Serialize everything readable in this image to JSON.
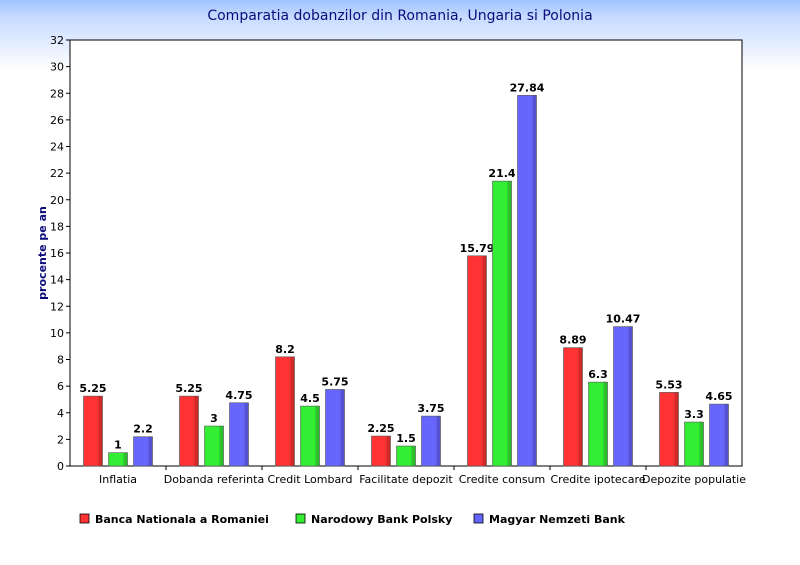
{
  "chart_data": {
    "type": "bar",
    "title": "Comparatia dobanzilor din Romania, Ungaria si Polonia",
    "xlabel": "",
    "ylabel": "procente pe an",
    "ylim": [
      0,
      32
    ],
    "ytick_step": 2,
    "grid": false,
    "legend_position": "bottom",
    "categories": [
      "Inflatia",
      "Dobanda referinta",
      "Credit Lombard",
      "Facilitate depozit",
      "Credite consum",
      "Credite ipotecare",
      "Depozite populatie"
    ],
    "series": [
      {
        "name": "Banca Nationala a Romaniei",
        "color": "#ff3333",
        "values": [
          5.25,
          5.25,
          8.2,
          2.25,
          15.79,
          8.89,
          5.53
        ],
        "labels": [
          "5.25",
          "5.25",
          "8.2",
          "2.25",
          "15.79",
          "8.89",
          "5.53"
        ]
      },
      {
        "name": "Narodowy Bank Polsky",
        "color": "#33ee33",
        "values": [
          1,
          3,
          4.5,
          1.5,
          21.4,
          6.3,
          3.3
        ],
        "labels": [
          "1",
          "3",
          "4.5",
          "1.5",
          "21.4",
          "6.3",
          "3.3"
        ]
      },
      {
        "name": "Magyar Nemzeti Bank",
        "color": "#6666ff",
        "values": [
          2.2,
          4.75,
          5.75,
          3.75,
          27.84,
          10.47,
          4.65
        ],
        "labels": [
          "2.2",
          "4.75",
          "5.75",
          "3.75",
          "27.84",
          "10.47",
          "4.65"
        ]
      }
    ]
  }
}
